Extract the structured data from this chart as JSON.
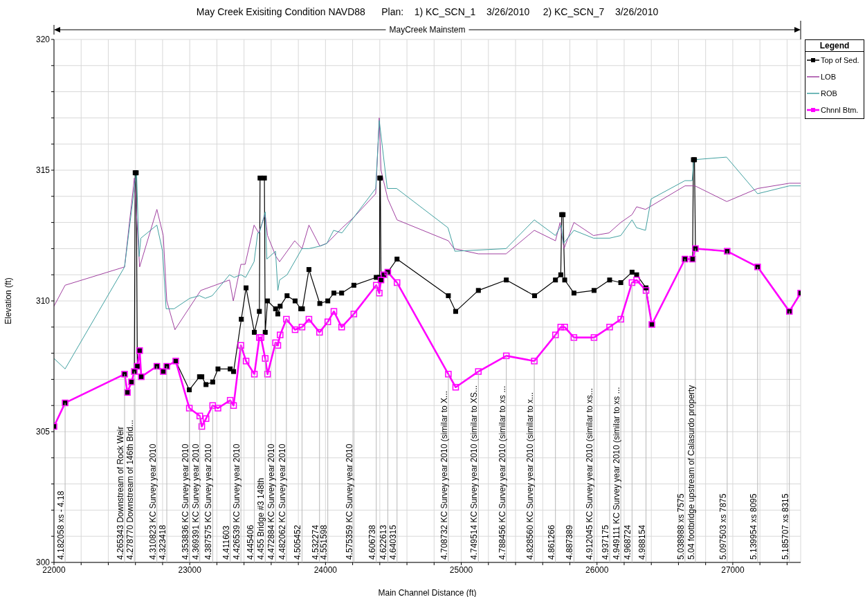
{
  "chart_data": {
    "type": "line",
    "title": "May Creek Exisiting Condition NAVD88      Plan:    1) KC_SCN_1    3/26/2010     2) KC_SCN_7    3/26/2010",
    "xlabel": "Main Channel Distance (ft)",
    "ylabel": "Elevation (ft)",
    "legend_title": "Legend",
    "legend": "top right",
    "grid": true,
    "xlim": [
      22000,
      27500
    ],
    "ylim": [
      300,
      320
    ],
    "xticks": [
      22000,
      {
        "value": 22200,
        "label": null
      },
      {
        "value": 22400,
        "label": null
      },
      {
        "value": 22600,
        "label": null
      },
      {
        "value": 22800,
        "label": null
      },
      23000,
      {
        "value": 23200,
        "label": null
      },
      {
        "value": 23400,
        "label": null
      },
      {
        "value": 23600,
        "label": null
      },
      {
        "value": 23800,
        "label": null
      },
      24000,
      {
        "value": 24200,
        "label": null
      },
      {
        "value": 24400,
        "label": null
      },
      {
        "value": 24600,
        "label": null
      },
      {
        "value": 24800,
        "label": null
      },
      25000,
      {
        "value": 25200,
        "label": null
      },
      {
        "value": 25400,
        "label": null
      },
      {
        "value": 25600,
        "label": null
      },
      {
        "value": 25800,
        "label": null
      },
      26000,
      {
        "value": 26200,
        "label": null
      },
      {
        "value": 26400,
        "label": null
      },
      {
        "value": 26600,
        "label": null
      },
      {
        "value": 26800,
        "label": null
      },
      27000,
      {
        "value": 27200,
        "label": null
      },
      {
        "value": 27400,
        "label": null
      }
    ],
    "yticks": [
      300,
      {
        "value": 301,
        "label": null
      },
      {
        "value": 302,
        "label": null
      },
      {
        "value": 303,
        "label": null
      },
      {
        "value": 304,
        "label": null
      },
      305,
      {
        "value": 306,
        "label": null
      },
      {
        "value": 307,
        "label": null
      },
      {
        "value": 308,
        "label": null
      },
      {
        "value": 309,
        "label": null
      },
      310,
      {
        "value": 311,
        "label": null
      },
      {
        "value": 312,
        "label": null
      },
      {
        "value": 313,
        "label": null
      },
      {
        "value": 314,
        "label": null
      },
      315,
      {
        "value": 316,
        "label": null
      },
      {
        "value": 317,
        "label": null
      },
      {
        "value": 318,
        "label": null
      },
      {
        "value": 319,
        "label": null
      },
      320
    ],
    "series": [
      {
        "name": "Top of Sed.",
        "color": "#000000",
        "marker": "square",
        "x": [
          22000,
          22082,
          22520,
          22541,
          22571,
          22592,
          22598,
          22606,
          22614,
          22631,
          22643,
          22758,
          22805,
          22831,
          22897,
          22997,
          23072,
          23089,
          23120,
          23169,
          23208,
          23298,
          23323,
          23380,
          23415,
          23476,
          23513,
          23518,
          23550,
          23556,
          23573,
          23632,
          23649,
          23666,
          23717,
          23776,
          23818,
          23830,
          23878,
          23958,
          24017,
          24062,
          24119,
          24209,
          24374,
          24398,
          24400,
          24404,
          24409,
          24430,
          24459,
          24527,
          24905,
          24959,
          25126,
          25332,
          25540,
          25694,
          25733,
          25740,
          25750,
          25762,
          25830,
          25978,
          26093,
          26175,
          26258,
          26292,
          26361,
          26404,
          26648,
          26704,
          26710,
          26718,
          26725,
          26959,
          27183,
          27417,
          27500
        ],
        "values": [
          305.2,
          306.1,
          307.2,
          306.5,
          306.9,
          307.3,
          314.9,
          314.9,
          307.5,
          308.1,
          307.1,
          307.5,
          307.3,
          307.5,
          307.7,
          306.6,
          307.1,
          307.1,
          306.8,
          306.9,
          307.4,
          307.4,
          307.3,
          309.3,
          310.5,
          308.8,
          309.6,
          314.7,
          314.7,
          308.8,
          310.0,
          309.7,
          309.5,
          309.8,
          310.2,
          310.0,
          309.7,
          309.7,
          311.2,
          309.9,
          310.0,
          310.3,
          310.3,
          310.6,
          310.9,
          310.9,
          314.7,
          314.7,
          310.8,
          311.0,
          311.1,
          311.6,
          310.2,
          309.6,
          310.4,
          310.8,
          310.2,
          310.8,
          311.0,
          313.3,
          313.3,
          310.8,
          310.3,
          310.4,
          310.8,
          310.7,
          311.1,
          311.0,
          310.5,
          309.1,
          311.6,
          311.6,
          315.4,
          315.4,
          312.0,
          311.9,
          311.3,
          309.6,
          310.3
        ]
      },
      {
        "name": "LOB",
        "color": "#a040a0",
        "marker": "none",
        "x": [
          22000,
          22082,
          22520,
          22592,
          22631,
          22758,
          22805,
          22831,
          22891,
          23081,
          23293,
          23321,
          23377,
          23408,
          23474,
          23508,
          23556,
          23573,
          23635,
          23662,
          23773,
          23827,
          23878,
          23958,
          24010,
          24124,
          24209,
          24370,
          24396,
          24409,
          24459,
          24527,
          24905,
          24947,
          25126,
          25330,
          25538,
          25694,
          25728,
          25757,
          25830,
          25974,
          26088,
          26175,
          26258,
          26292,
          26357,
          26648,
          26722,
          26956,
          27183,
          27417,
          27500
        ],
        "values": [
          309.8,
          310.6,
          311.3,
          314.7,
          311.3,
          313.5,
          312.5,
          310.0,
          308.9,
          310.4,
          310.8,
          310.0,
          311.4,
          311.4,
          312.9,
          312.6,
          313.3,
          312.5,
          311.7,
          311.5,
          312.3,
          312.0,
          312.9,
          312.1,
          312.2,
          312.8,
          313.2,
          314.1,
          317.0,
          315.0,
          313.9,
          313.1,
          312.3,
          312.0,
          311.8,
          311.8,
          312.7,
          312.3,
          313.0,
          312.0,
          313.0,
          312.5,
          312.6,
          313.0,
          313.3,
          313.6,
          313.5,
          314.4,
          314.4,
          313.8,
          314.3,
          314.5,
          314.5
        ]
      },
      {
        "name": "ROB",
        "color": "#40a0a0",
        "marker": "none",
        "x": [
          22000,
          22082,
          22520,
          22608,
          22627,
          22640,
          22758,
          22800,
          22826,
          22885,
          23000,
          23072,
          23115,
          23166,
          23293,
          23327,
          23377,
          23412,
          23474,
          23501,
          23513,
          23556,
          23568,
          23632,
          23649,
          23662,
          23717,
          23827,
          23878,
          23963,
          24010,
          24060,
          24121,
          24209,
          24370,
          24396,
          24455,
          24524,
          24902,
          24953,
          25330,
          25538,
          25694,
          25736,
          25753,
          25830,
          25974,
          26093,
          26175,
          26258,
          26292,
          26357,
          26399,
          26648,
          26701,
          26713,
          26954,
          27183,
          27417,
          27500
        ],
        "values": [
          307.8,
          307.4,
          311.3,
          315.0,
          311.7,
          312.4,
          312.9,
          311.9,
          309.7,
          309.7,
          310.1,
          310.2,
          310.1,
          310.2,
          311.0,
          310.9,
          311.0,
          310.9,
          311.5,
          312.6,
          312.6,
          313.4,
          311.6,
          311.9,
          310.4,
          310.8,
          311.0,
          312.0,
          312.0,
          312.1,
          312.2,
          312.7,
          312.6,
          313.2,
          314.3,
          316.9,
          314.3,
          314.3,
          312.8,
          311.9,
          312.0,
          313.1,
          312.5,
          312.9,
          312.2,
          312.7,
          312.4,
          312.4,
          312.5,
          313.1,
          312.8,
          312.7,
          313.9,
          314.6,
          314.6,
          315.4,
          315.5,
          314.1,
          314.4,
          314.4
        ]
      },
      {
        "name": "Chnnl Btm.",
        "color": "#ff00ff",
        "marker": "square",
        "x": [
          22000,
          22082,
          22520,
          22541,
          22571,
          22592,
          22614,
          22631,
          22643,
          22758,
          22805,
          22831,
          22897,
          22997,
          23074,
          23089,
          23120,
          23169,
          23208,
          23298,
          23323,
          23377,
          23415,
          23476,
          23513,
          23525,
          23556,
          23573,
          23632,
          23649,
          23666,
          23712,
          23776,
          23827,
          23878,
          23956,
          24017,
          24062,
          24119,
          24209,
          24374,
          24396,
          24409,
          24430,
          24459,
          24527,
          24905,
          24959,
          25126,
          25332,
          25538,
          25694,
          25733,
          25762,
          25830,
          25978,
          26093,
          26175,
          26258,
          26292,
          26361,
          26404,
          26648,
          26704,
          26725,
          26959,
          27183,
          27417,
          27500
        ],
        "values": [
          305.2,
          306.1,
          307.2,
          306.5,
          306.9,
          307.3,
          307.5,
          308.1,
          307.1,
          307.5,
          307.3,
          307.5,
          307.7,
          305.9,
          305.6,
          305.2,
          305.5,
          306.0,
          305.9,
          306.2,
          306.0,
          308.3,
          307.7,
          307.2,
          308.6,
          308.6,
          307.8,
          307.2,
          308.4,
          308.3,
          308.7,
          309.3,
          308.9,
          309.0,
          309.3,
          308.8,
          309.2,
          309.6,
          309.0,
          309.5,
          310.6,
          310.3,
          310.8,
          311.0,
          311.1,
          310.7,
          307.2,
          306.7,
          307.3,
          307.9,
          307.7,
          308.7,
          309.0,
          309.0,
          308.6,
          308.6,
          309.0,
          309.3,
          310.7,
          310.8,
          310.4,
          309.1,
          311.6,
          311.6,
          312.0,
          311.9,
          311.3,
          309.6,
          310.3
        ]
      }
    ],
    "annotations": [
      "MayCreek Mainstem",
      {
        "text": "4.182058 xs - 4.18",
        "x": 22082,
        "y": 306.1
      },
      {
        "text": "4.265343 Downstream of Rock Weir",
        "x": 22520,
        "y": 307.2
      },
      {
        "text": "4.278770 Downstream of 146th Brid...",
        "x": 22592,
        "y": 307.3
      },
      {
        "text": "4.310823 KC Survey year 2010",
        "x": 22758,
        "y": 307.5
      },
      {
        "text": "4.323418",
        "x": 22831,
        "y": 307.5
      },
      {
        "text": "4.353836 KC Survey year 2010",
        "x": 22997,
        "y": 305.9
      },
      {
        "text": "4.369391 KC Survey year 2010",
        "x": 23074,
        "y": 305.6
      },
      {
        "text": "4.387575 KC Survey year 2010",
        "x": 23169,
        "y": 306.0
      },
      {
        "text": "4.411603",
        "x": 23298,
        "y": 306.2
      },
      {
        "text": "4.426539 KC Survey year 2010",
        "x": 23377,
        "y": 308.3
      },
      {
        "text": "4.445406",
        "x": 23476,
        "y": 307.2
      },
      {
        "text": "4.455 Bridge #3 148th",
        "x": 23556,
        "y": 307.8
      },
      {
        "text": "4.472884 KC Survey year 2010",
        "x": 23632,
        "y": 308.4
      },
      {
        "text": "4.482062 KC Survey year 2010",
        "x": 23712,
        "y": 309.3
      },
      {
        "text": "4.505452",
        "x": 23827,
        "y": 309.0
      },
      {
        "text": "4.532274",
        "x": 23956,
        "y": 308.8
      },
      {
        "text": "4.551598",
        "x": 24017,
        "y": 309.2
      },
      {
        "text": "4.575359 KC Survey year 2010",
        "x": 24209,
        "y": 309.5
      },
      {
        "text": "4.606738",
        "x": 24374,
        "y": 310.6
      },
      {
        "text": "4.622613",
        "x": 24459,
        "y": 311.1
      },
      {
        "text": "4.640315",
        "x": 24527,
        "y": 310.7
      },
      {
        "text": "4.708732 KC Survey year 2010 (similar to X...",
        "x": 24905,
        "y": 307.2
      },
      {
        "text": "4.749514 KC Survey year 2010 (similar to XS...",
        "x": 25126,
        "y": 307.3
      },
      {
        "text": "4.788456 KC Survey year 2010 (similar to xs ...",
        "x": 25332,
        "y": 307.9
      },
      {
        "text": "4.828560 KC Survey year 2010 (similar to x...",
        "x": 25538,
        "y": 307.7
      },
      {
        "text": "4.861266",
        "x": 25694,
        "y": 308.7
      },
      {
        "text": "4.887389",
        "x": 25830,
        "y": 308.6
      },
      {
        "text": "4.912045 KC Survey year 2010 (similar to xs...",
        "x": 25978,
        "y": 308.6
      },
      {
        "text": "4.937175",
        "x": 26093,
        "y": 309.0
      },
      {
        "text": "4.949111 KC Survey year 2010 (similar to xs ...",
        "x": 26175,
        "y": 309.3
      },
      {
        "text": "4.968724",
        "x": 26258,
        "y": 310.7
      },
      {
        "text": "4.988154",
        "x": 26361,
        "y": 310.4
      },
      {
        "text": "5.038988 xs 7575",
        "x": 26648,
        "y": 311.6
      },
      {
        "text": "5.04 footbridge upstream of Calasurdo property",
        "x": 26725,
        "y": 312.0
      },
      {
        "text": "5.097503 xs 7875",
        "x": 26959,
        "y": 311.9
      },
      {
        "text": "5.139954 xs 8095",
        "x": 27183,
        "y": 311.3
      },
      {
        "text": "5.185707 xs 8315",
        "x": 27417,
        "y": 309.6
      }
    ]
  }
}
